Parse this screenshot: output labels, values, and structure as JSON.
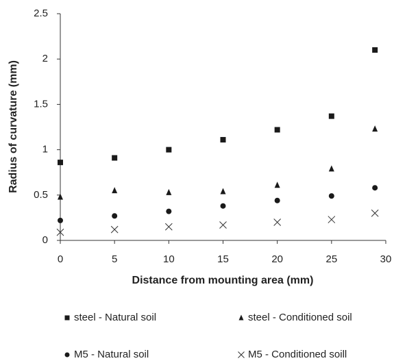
{
  "chart_data": {
    "type": "scatter",
    "x_label": "Distance from mounting area (mm)",
    "y_label": "Radius of curvature (mm)",
    "x": [
      0,
      5,
      10,
      15,
      20,
      25,
      29
    ],
    "series": [
      {
        "name": "steel - Natural soil",
        "color": "#1a1a1a",
        "marker": "square",
        "values": [
          0.86,
          0.91,
          1.0,
          1.11,
          1.22,
          1.37,
          2.1
        ]
      },
      {
        "name": "steel - Conditioned soil",
        "color": "#1a1a1a",
        "marker": "triangle",
        "values": [
          0.48,
          0.55,
          0.53,
          0.54,
          0.61,
          0.79,
          1.23
        ]
      },
      {
        "name": "M5 - Natural soil",
        "color": "#1a1a1a",
        "marker": "circle",
        "values": [
          0.22,
          0.27,
          0.32,
          0.38,
          0.44,
          0.49,
          0.58
        ]
      },
      {
        "name": "M5 - Conditioned soill",
        "color": "#333333",
        "marker": "x",
        "values": [
          0.09,
          0.12,
          0.15,
          0.17,
          0.2,
          0.23,
          0.3
        ]
      }
    ],
    "xlim": [
      0,
      30
    ],
    "xticks": [
      0,
      5,
      10,
      15,
      20,
      25,
      30
    ],
    "ylim": [
      0,
      2.5
    ],
    "yticks": [
      0,
      0.5,
      1,
      1.5,
      2,
      2.5
    ]
  }
}
